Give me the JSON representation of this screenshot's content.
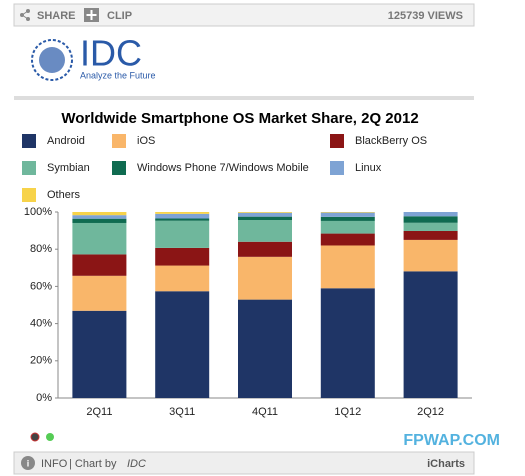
{
  "toolbar": {
    "share": "SHARE",
    "clip": "CLIP",
    "views": "125739 VIEWS"
  },
  "logo": {
    "name": "IDC",
    "tagline": "Analyze the Future"
  },
  "chart_data": {
    "type": "stacked-bar",
    "title": "Worldwide Smartphone OS Market Share, 2Q 2012",
    "categories": [
      "2Q11",
      "3Q11",
      "4Q11",
      "1Q12",
      "2Q12"
    ],
    "series": [
      {
        "name": "Android",
        "color": "#1f3566",
        "values": [
          46.9,
          57.4,
          52.9,
          59.0,
          68.1
        ]
      },
      {
        "name": "iOS",
        "color": "#f9b66a",
        "values": [
          18.8,
          13.8,
          23.0,
          23.0,
          16.9
        ]
      },
      {
        "name": "BlackBerry OS",
        "color": "#8b1515",
        "values": [
          11.5,
          9.5,
          8.1,
          6.4,
          4.8
        ]
      },
      {
        "name": "Symbian",
        "color": "#6fb79c",
        "values": [
          16.9,
          14.6,
          11.7,
          6.8,
          4.4
        ]
      },
      {
        "name": "Windows Phone 7/Windows Mobile",
        "color": "#0f6b50",
        "values": [
          2.3,
          1.2,
          1.8,
          2.2,
          3.5
        ]
      },
      {
        "name": "Linux",
        "color": "#7ea3d4",
        "values": [
          1.9,
          2.5,
          2.1,
          2.3,
          2.3
        ]
      },
      {
        "name": "Others",
        "color": "#f7d34a",
        "values": [
          1.7,
          1.0,
          0.4,
          0.3,
          0.0
        ]
      }
    ],
    "ylim": [
      0,
      100
    ],
    "yticks": [
      {
        "value": 0,
        "label": "0%"
      },
      {
        "value": 20,
        "label": "20%"
      },
      {
        "value": 40,
        "label": "40%"
      },
      {
        "value": 60,
        "label": "60%"
      },
      {
        "value": 80,
        "label": "80%"
      },
      {
        "value": 100,
        "label": "100%"
      }
    ],
    "grid": false
  },
  "footer": {
    "info": "INFO",
    "chart_by": "| Chart by",
    "brand": "IDC",
    "provider": "iCharts",
    "watermark": "FPWAP.COM"
  }
}
